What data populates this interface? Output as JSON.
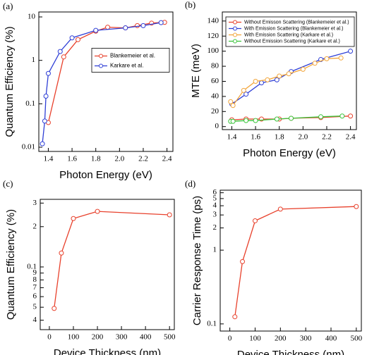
{
  "chart_data": [
    {
      "type": "line",
      "label": "(a)",
      "xlabel": "Photon Energy (eV)",
      "ylabel": "Quantum Efficiency (%)",
      "xlim": [
        1.32,
        2.45
      ],
      "ylim": [
        0.008,
        13
      ],
      "log_y": true,
      "legend": "right",
      "xticks": [
        1.4,
        1.6,
        1.8,
        {
          "value": 2,
          "label": "2.0"
        },
        2.2,
        2.4
      ],
      "yticks": [
        0.01,
        0.1,
        1,
        10
      ],
      "series": [
        {
          "name": "Blankemeier et al.",
          "color": "#e8412c",
          "x": [
            1.4,
            1.53,
            1.65,
            1.8,
            1.9,
            2.05,
            2.15,
            2.27,
            2.38
          ],
          "values": [
            0.037,
            1.2,
            3,
            4.7,
            5.8,
            5.6,
            6.3,
            7.2,
            7.5
          ]
        },
        {
          "name": "Karkare et al.",
          "color": "#2f3fd6",
          "x": [
            1.35,
            1.37,
            1.38,
            1.4,
            1.5,
            1.6,
            1.8,
            2.05,
            2.2,
            2.35
          ],
          "values": [
            0.012,
            0.04,
            0.15,
            0.5,
            1.6,
            3.3,
            4.9,
            5.6,
            6.3,
            7.4
          ]
        }
      ]
    },
    {
      "type": "line",
      "label": "(b)",
      "xlabel": "Photon Energy (eV)",
      "ylabel": "MTE (meV)",
      "xlim": [
        1.32,
        2.45
      ],
      "ylim": [
        -4,
        152
      ],
      "log_y": false,
      "legend": "upper left",
      "xticks": [
        1.4,
        1.6,
        1.8,
        {
          "value": 2,
          "label": "2.0"
        },
        2.2,
        2.4
      ],
      "yticks": [
        0,
        20,
        40,
        60,
        80,
        100,
        120,
        140
      ],
      "series": [
        {
          "name": "Without Emisson Scattering (Blankemeier et al.)",
          "color": "#e8412c",
          "x": [
            1.4,
            1.52,
            1.65,
            1.8,
            1.9,
            2.15,
            2.4
          ],
          "values": [
            9,
            10,
            10,
            10,
            11,
            12,
            14
          ]
        },
        {
          "name": "With Emission Scattering (Blankemeier et al.)",
          "color": "#2f3fd6",
          "x": [
            1.4,
            1.52,
            1.65,
            1.78,
            1.9,
            2.15,
            2.4
          ],
          "values": [
            30,
            43,
            58,
            62,
            73,
            89,
            100
          ]
        },
        {
          "name": "With Emission Scattering (Karkare et al.)",
          "color": "#f2a53a",
          "x": [
            1.39,
            1.41,
            1.5,
            1.6,
            1.7,
            1.8,
            1.88,
            2.0,
            2.1,
            2.2,
            2.32
          ],
          "values": [
            33,
            28,
            48,
            60,
            62,
            67,
            70,
            76,
            84,
            90,
            91
          ]
        },
        {
          "name": "Without Emission Scattering (Karkare et al.)",
          "color": "#3cc43c",
          "x": [
            1.39,
            1.41,
            1.52,
            1.6,
            1.78,
            1.9,
            2.15,
            2.33
          ],
          "values": [
            7,
            7,
            8,
            8,
            10,
            11,
            13,
            14
          ]
        }
      ]
    },
    {
      "type": "line",
      "label": "(c)",
      "xlabel": "Device Thickness (nm)",
      "ylabel": "Quantum Efficiency (%)",
      "xlim": [
        -38,
        520
      ],
      "ylim": [
        0.034,
        0.32
      ],
      "log_y": true,
      "xticks": [
        0,
        100,
        200,
        300,
        400,
        500
      ],
      "yticks": [
        {
          "value": 0.04,
          "label": "4"
        },
        {
          "value": 0.05,
          "label": "5"
        },
        {
          "value": 0.06,
          "label": "6"
        },
        {
          "value": 0.07,
          "label": "7"
        },
        {
          "value": 0.08,
          "label": "8"
        },
        {
          "value": 0.09,
          "label": "9"
        },
        0.1,
        {
          "value": 0.2,
          "label": "2"
        },
        {
          "value": 0.3,
          "label": "3"
        }
      ],
      "color": "#e8412c",
      "x": [
        20,
        50,
        100,
        200,
        500
      ],
      "values": [
        0.049,
        0.127,
        0.23,
        0.26,
        0.245
      ]
    },
    {
      "type": "line",
      "label": "(d)",
      "xlabel": "Device Thickness (nm)",
      "ylabel": "Carrier Response Time (ps)",
      "xlim": [
        -38,
        520
      ],
      "ylim": [
        0.08,
        6.5
      ],
      "log_y": true,
      "xticks": [
        0,
        100,
        200,
        300,
        400,
        500
      ],
      "yticks": [
        0.1,
        1,
        {
          "value": 2,
          "label": "2"
        },
        {
          "value": 3,
          "label": "3"
        },
        {
          "value": 4,
          "label": "4"
        },
        {
          "value": 5,
          "label": "5"
        },
        {
          "value": 6,
          "label": "6"
        }
      ],
      "color": "#e8412c",
      "x": [
        20,
        50,
        100,
        200,
        500
      ],
      "values": [
        0.125,
        0.7,
        2.5,
        3.6,
        3.9
      ]
    }
  ]
}
